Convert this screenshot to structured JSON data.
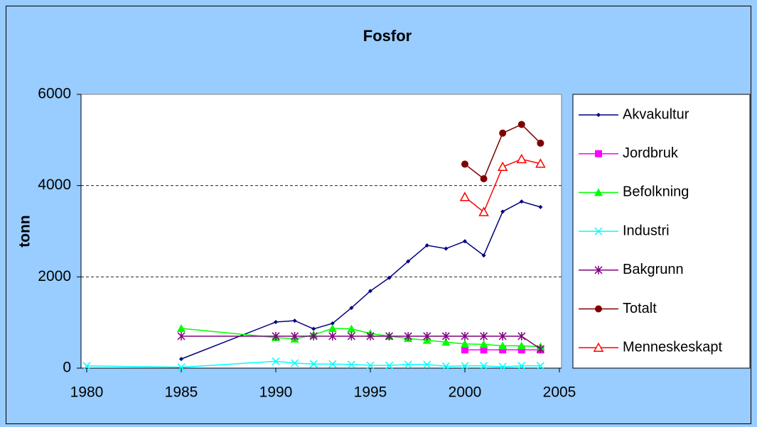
{
  "chart_data": {
    "type": "line",
    "title": "Fosfor",
    "y_label": "tonn",
    "x": [
      1980,
      1985,
      1990,
      1991,
      1992,
      1993,
      1994,
      1995,
      1996,
      1997,
      1998,
      1999,
      2000,
      2001,
      2002,
      2003,
      2004
    ],
    "xlim": [
      1980,
      2005
    ],
    "xticks": [
      1980,
      1985,
      1990,
      1995,
      2000,
      2005
    ],
    "ylim": [
      0,
      6000
    ],
    "yticks": [
      0,
      2000,
      4000,
      6000
    ],
    "grid": true,
    "legend": "right",
    "series": [
      {
        "name": "Akvakultur",
        "color": "#000080",
        "marker": "diamond",
        "values": [
          null,
          200,
          1010,
          1040,
          860,
          980,
          1320,
          1690,
          1980,
          2340,
          2690,
          2620,
          2780,
          2470,
          3430,
          3650,
          3530
        ]
      },
      {
        "name": "Jordbruk",
        "color": "#ff00ff",
        "marker": "square",
        "values": [
          null,
          null,
          null,
          null,
          null,
          null,
          null,
          null,
          null,
          null,
          null,
          null,
          400,
          400,
          400,
          400,
          400
        ]
      },
      {
        "name": "Befolkning",
        "color": "#00ff00",
        "marker": "triangle",
        "values": [
          null,
          870,
          670,
          640,
          730,
          870,
          860,
          760,
          700,
          650,
          610,
          570,
          530,
          520,
          490,
          490,
          470
        ]
      },
      {
        "name": "Industri",
        "color": "#00ffff",
        "marker": "x",
        "values": [
          50,
          20,
          150,
          110,
          90,
          90,
          80,
          60,
          60,
          80,
          80,
          40,
          50,
          50,
          30,
          50,
          50
        ]
      },
      {
        "name": "Bakgrunn",
        "color": "#800080",
        "marker": "star",
        "values": [
          null,
          700,
          700,
          700,
          700,
          700,
          700,
          700,
          700,
          700,
          700,
          700,
          700,
          700,
          700,
          700,
          420
        ]
      },
      {
        "name": "Totalt",
        "color": "#800000",
        "marker": "circle",
        "values": [
          null,
          null,
          null,
          null,
          null,
          null,
          null,
          null,
          null,
          null,
          null,
          null,
          4470,
          4150,
          5150,
          5340,
          4930
        ]
      },
      {
        "name": "Menneskeskapt",
        "color": "#ff0000",
        "marker": "open-triangle",
        "values": [
          null,
          null,
          null,
          null,
          null,
          null,
          null,
          null,
          null,
          null,
          null,
          null,
          3750,
          3420,
          4410,
          4580,
          4480
        ]
      }
    ]
  }
}
